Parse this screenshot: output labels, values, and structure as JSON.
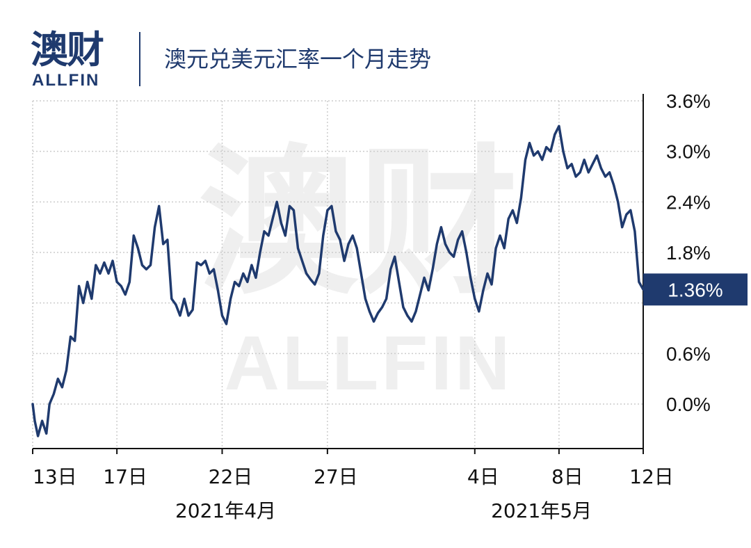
{
  "brand": {
    "logo_cn": "澳财",
    "logo_en": "ALLFIN"
  },
  "title": "澳元兑美元汇率一个月走势",
  "watermark": {
    "cn": "澳财",
    "en": "ALLFIN"
  },
  "colors": {
    "line": "#1f3a6e",
    "badge": "#1f3a6e",
    "grid": "#cccccc",
    "axis": "#111111"
  },
  "chart_data": {
    "type": "line",
    "title": "澳元兑美元汇率一个月走势",
    "xlabel": "",
    "ylabel": "",
    "ylim": [
      -0.5,
      3.6
    ],
    "xlim": [
      0,
      29
    ],
    "y_ticks": [
      0.0,
      0.6,
      1.2,
      1.8,
      2.4,
      3.0,
      3.6
    ],
    "y_tick_labels": [
      "0.0%",
      "0.6%",
      "",
      "1.8%",
      "2.4%",
      "3.0%",
      "3.6%"
    ],
    "x_ticks": [
      {
        "x": 0,
        "label": "13日"
      },
      {
        "x": 4,
        "label": "17日"
      },
      {
        "x": 9,
        "label": "22日"
      },
      {
        "x": 14,
        "label": "27日"
      },
      {
        "x": 21,
        "label": "4日"
      },
      {
        "x": 25,
        "label": "8日"
      },
      {
        "x": 29,
        "label": "12日"
      }
    ],
    "month_labels": [
      {
        "x": 9,
        "label": "2021年4月"
      },
      {
        "x": 24,
        "label": "2021年5月"
      }
    ],
    "grid": true,
    "last_value_label": "1.36%",
    "series": [
      {
        "name": "",
        "points": [
          [
            0.0,
            0.0
          ],
          [
            0.1,
            -0.2
          ],
          [
            0.25,
            -0.38
          ],
          [
            0.45,
            -0.2
          ],
          [
            0.65,
            -0.35
          ],
          [
            0.8,
            0.0
          ],
          [
            1.0,
            0.12
          ],
          [
            1.2,
            0.3
          ],
          [
            1.4,
            0.2
          ],
          [
            1.6,
            0.4
          ],
          [
            1.8,
            0.8
          ],
          [
            2.0,
            0.75
          ],
          [
            2.2,
            1.4
          ],
          [
            2.4,
            1.2
          ],
          [
            2.6,
            1.45
          ],
          [
            2.8,
            1.25
          ],
          [
            3.0,
            1.65
          ],
          [
            3.2,
            1.55
          ],
          [
            3.4,
            1.68
          ],
          [
            3.6,
            1.55
          ],
          [
            3.8,
            1.7
          ],
          [
            4.0,
            1.45
          ],
          [
            4.2,
            1.4
          ],
          [
            4.4,
            1.3
          ],
          [
            4.6,
            1.45
          ],
          [
            4.8,
            2.0
          ],
          [
            5.0,
            1.85
          ],
          [
            5.2,
            1.65
          ],
          [
            5.4,
            1.6
          ],
          [
            5.6,
            1.65
          ],
          [
            5.8,
            2.1
          ],
          [
            6.0,
            2.35
          ],
          [
            6.2,
            1.9
          ],
          [
            6.4,
            1.95
          ],
          [
            6.6,
            1.25
          ],
          [
            6.8,
            1.18
          ],
          [
            7.0,
            1.05
          ],
          [
            7.2,
            1.25
          ],
          [
            7.4,
            1.05
          ],
          [
            7.6,
            1.12
          ],
          [
            7.8,
            1.68
          ],
          [
            8.0,
            1.65
          ],
          [
            8.2,
            1.7
          ],
          [
            8.4,
            1.55
          ],
          [
            8.6,
            1.6
          ],
          [
            8.8,
            1.35
          ],
          [
            9.0,
            1.05
          ],
          [
            9.2,
            0.95
          ],
          [
            9.4,
            1.25
          ],
          [
            9.6,
            1.45
          ],
          [
            9.8,
            1.4
          ],
          [
            10.0,
            1.55
          ],
          [
            10.2,
            1.45
          ],
          [
            10.4,
            1.65
          ],
          [
            10.6,
            1.5
          ],
          [
            10.8,
            1.8
          ],
          [
            11.0,
            2.05
          ],
          [
            11.2,
            2.0
          ],
          [
            11.4,
            2.2
          ],
          [
            11.6,
            2.4
          ],
          [
            11.8,
            2.15
          ],
          [
            12.0,
            2.0
          ],
          [
            12.2,
            2.35
          ],
          [
            12.4,
            2.3
          ],
          [
            12.6,
            1.85
          ],
          [
            12.8,
            1.7
          ],
          [
            13.0,
            1.55
          ],
          [
            13.2,
            1.48
          ],
          [
            13.4,
            1.42
          ],
          [
            13.6,
            1.55
          ],
          [
            13.8,
            2.0
          ],
          [
            14.0,
            2.3
          ],
          [
            14.2,
            2.35
          ],
          [
            14.4,
            2.05
          ],
          [
            14.6,
            1.95
          ],
          [
            14.8,
            1.7
          ],
          [
            15.0,
            1.9
          ],
          [
            15.2,
            2.0
          ],
          [
            15.4,
            1.85
          ],
          [
            15.6,
            1.55
          ],
          [
            15.8,
            1.25
          ],
          [
            16.0,
            1.1
          ],
          [
            16.2,
            0.98
          ],
          [
            16.4,
            1.08
          ],
          [
            16.6,
            1.15
          ],
          [
            16.8,
            1.25
          ],
          [
            17.0,
            1.6
          ],
          [
            17.2,
            1.75
          ],
          [
            17.4,
            1.45
          ],
          [
            17.6,
            1.15
          ],
          [
            17.8,
            1.05
          ],
          [
            18.0,
            0.98
          ],
          [
            18.2,
            1.1
          ],
          [
            18.4,
            1.3
          ],
          [
            18.6,
            1.5
          ],
          [
            18.8,
            1.35
          ],
          [
            19.0,
            1.6
          ],
          [
            19.2,
            1.9
          ],
          [
            19.4,
            2.1
          ],
          [
            19.6,
            1.9
          ],
          [
            19.8,
            1.8
          ],
          [
            20.0,
            1.75
          ],
          [
            20.2,
            1.95
          ],
          [
            20.4,
            2.05
          ],
          [
            20.6,
            1.8
          ],
          [
            20.8,
            1.5
          ],
          [
            21.0,
            1.25
          ],
          [
            21.2,
            1.1
          ],
          [
            21.4,
            1.35
          ],
          [
            21.6,
            1.55
          ],
          [
            21.8,
            1.42
          ],
          [
            22.0,
            1.85
          ],
          [
            22.2,
            2.0
          ],
          [
            22.4,
            1.85
          ],
          [
            22.6,
            2.2
          ],
          [
            22.8,
            2.3
          ],
          [
            23.0,
            2.15
          ],
          [
            23.2,
            2.45
          ],
          [
            23.4,
            2.9
          ],
          [
            23.6,
            3.1
          ],
          [
            23.8,
            2.95
          ],
          [
            24.0,
            3.0
          ],
          [
            24.2,
            2.9
          ],
          [
            24.4,
            3.05
          ],
          [
            24.6,
            3.0
          ],
          [
            24.8,
            3.2
          ],
          [
            25.0,
            3.3
          ],
          [
            25.2,
            3.0
          ],
          [
            25.4,
            2.8
          ],
          [
            25.6,
            2.85
          ],
          [
            25.8,
            2.7
          ],
          [
            26.0,
            2.75
          ],
          [
            26.2,
            2.9
          ],
          [
            26.4,
            2.75
          ],
          [
            26.6,
            2.85
          ],
          [
            26.8,
            2.95
          ],
          [
            27.0,
            2.8
          ],
          [
            27.2,
            2.7
          ],
          [
            27.4,
            2.75
          ],
          [
            27.6,
            2.6
          ],
          [
            27.8,
            2.4
          ],
          [
            28.0,
            2.1
          ],
          [
            28.2,
            2.25
          ],
          [
            28.4,
            2.3
          ],
          [
            28.6,
            2.05
          ],
          [
            28.8,
            1.45
          ],
          [
            29.0,
            1.36
          ]
        ]
      }
    ]
  }
}
